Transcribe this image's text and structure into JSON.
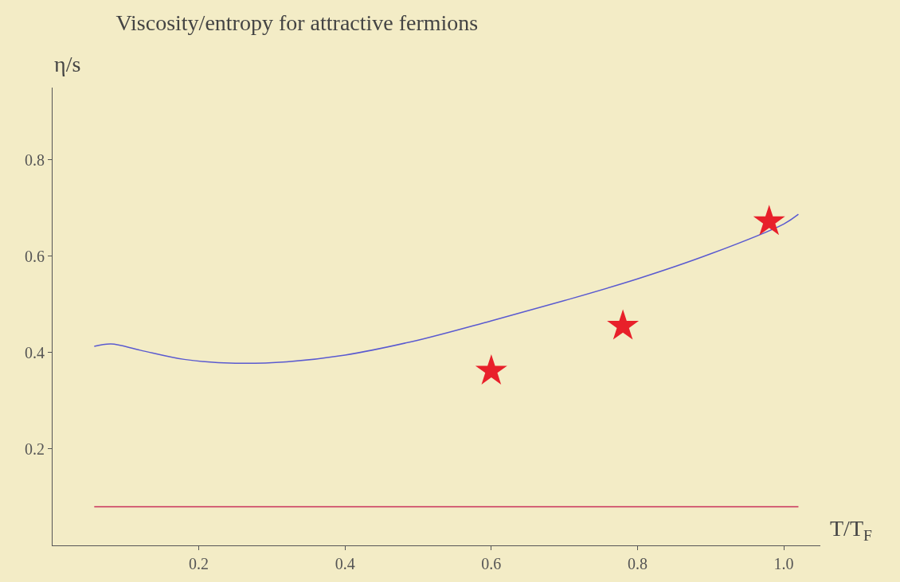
{
  "chart_data": {
    "type": "line",
    "title": "Viscosity/entropy for attractive fermions",
    "xlabel": "T/T$_{F}$",
    "ylabel": "η/s",
    "xlim": [
      0,
      1.05
    ],
    "ylim": [
      0,
      0.95
    ],
    "xticks": [
      0.2,
      0.4,
      0.6,
      0.8,
      {
        "value": 1,
        "label": "1.0"
      }
    ],
    "yticks": [
      0.2,
      0.4,
      0.6,
      0.8
    ],
    "grid": false,
    "series": [
      {
        "color": "#5a5ad0",
        "x": [
          0.057,
          0.08,
          0.12,
          0.18,
          0.25,
          0.32,
          0.4,
          0.5,
          0.6,
          0.7,
          0.8,
          0.9,
          1.0,
          1.02
        ],
        "values": [
          0.413,
          0.418,
          0.405,
          0.386,
          0.378,
          0.381,
          0.395,
          0.426,
          0.466,
          0.508,
          0.553,
          0.605,
          0.667,
          0.687
        ]
      },
      {
        "color": "#c8305a",
        "x": [
          0.057,
          1.02
        ],
        "values": [
          0.08,
          0.08
        ]
      },
      {
        "type": "scatter",
        "marker": "star",
        "color": "#e8202a",
        "x": [
          0.6,
          0.78,
          0.98
        ],
        "values": [
          0.362,
          0.455,
          0.672
        ]
      }
    ]
  }
}
